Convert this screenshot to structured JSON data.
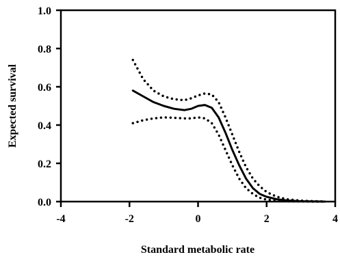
{
  "chart_data": {
    "type": "line",
    "title": "",
    "xlabel": "Standard metabolic rate",
    "ylabel": "Expected survival",
    "xlim": [
      -4,
      4
    ],
    "ylim": [
      0.0,
      1.0
    ],
    "xticks": [
      -4,
      -2,
      0,
      2,
      4
    ],
    "yticks": [
      0.0,
      0.2,
      0.4,
      0.6,
      0.8,
      1.0
    ],
    "x_tick_labels": [
      "-4",
      "-2",
      "0",
      "2",
      "4"
    ],
    "y_tick_labels": [
      "0.0",
      "0.2",
      "0.4",
      "0.6",
      "0.8",
      "1.0"
    ],
    "grid": false,
    "legend": "none",
    "series": [
      {
        "style": "solid",
        "color": "#000000",
        "x": [
          -1.9,
          -1.6,
          -1.3,
          -1.0,
          -0.7,
          -0.4,
          -0.2,
          0.0,
          0.2,
          0.4,
          0.6,
          0.8,
          1.0,
          1.2,
          1.4,
          1.6,
          1.8,
          2.0,
          2.3,
          2.6,
          3.0,
          3.4,
          3.7
        ],
        "y": [
          0.58,
          0.55,
          0.52,
          0.5,
          0.485,
          0.478,
          0.485,
          0.5,
          0.505,
          0.49,
          0.44,
          0.36,
          0.27,
          0.19,
          0.12,
          0.07,
          0.04,
          0.025,
          0.012,
          0.006,
          0.002,
          0.001,
          0.0
        ]
      },
      {
        "style": "dotted",
        "color": "#000000",
        "x": [
          -1.9,
          -1.6,
          -1.3,
          -1.0,
          -0.7,
          -0.4,
          -0.2,
          0.0,
          0.2,
          0.4,
          0.6,
          0.8,
          1.0,
          1.2,
          1.4,
          1.6,
          1.8,
          2.0,
          2.3,
          2.6,
          3.0,
          3.4,
          3.7
        ],
        "y": [
          0.74,
          0.64,
          0.58,
          0.55,
          0.535,
          0.53,
          0.54,
          0.555,
          0.565,
          0.56,
          0.52,
          0.44,
          0.35,
          0.26,
          0.18,
          0.12,
          0.08,
          0.05,
          0.025,
          0.012,
          0.005,
          0.002,
          0.0
        ]
      },
      {
        "style": "dotted",
        "color": "#000000",
        "x": [
          -1.9,
          -1.6,
          -1.3,
          -1.0,
          -0.7,
          -0.4,
          -0.2,
          0.0,
          0.2,
          0.4,
          0.6,
          0.8,
          1.0,
          1.2,
          1.4,
          1.6,
          1.8,
          2.0,
          2.3,
          2.6,
          3.0,
          3.4,
          3.7
        ],
        "y": [
          0.41,
          0.425,
          0.435,
          0.44,
          0.438,
          0.435,
          0.435,
          0.44,
          0.435,
          0.41,
          0.35,
          0.27,
          0.19,
          0.12,
          0.07,
          0.04,
          0.02,
          0.01,
          0.005,
          0.002,
          0.001,
          0.0,
          0.0
        ]
      }
    ]
  }
}
